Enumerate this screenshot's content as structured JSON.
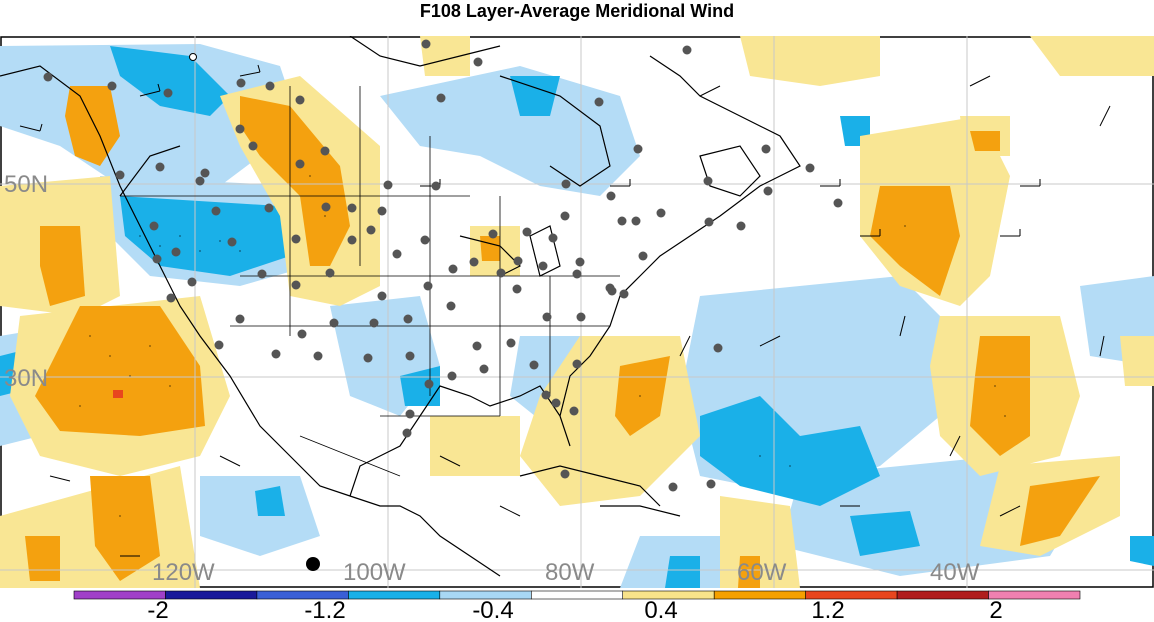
{
  "title": "F108 Layer-Average Meridional Wind",
  "lon_labels": [
    "120W",
    "100W",
    "80W",
    "60W",
    "40W"
  ],
  "lat_labels": [
    "50N",
    "30N"
  ],
  "colorbar": {
    "labels": [
      "-2",
      "-1.2",
      "-0.4",
      "0.4",
      "1.2",
      "2"
    ],
    "colors": [
      "#a040c8",
      "#1a1a9a",
      "#3a5fd6",
      "#1ab0e8",
      "#a8d8f5",
      "#ffffff",
      "#f8e38a",
      "#f5a000",
      "#e8461e",
      "#b01e1e",
      "#f080b0"
    ]
  },
  "colors": {
    "neg_strong": "#1ab0e8",
    "neg_weak": "#b4dcf6",
    "pos_weak": "#f9e694",
    "pos_strong": "#f4a10f",
    "pos_peak": "#e8461e",
    "grid": "#c8c8c8",
    "station": "#555555"
  }
}
